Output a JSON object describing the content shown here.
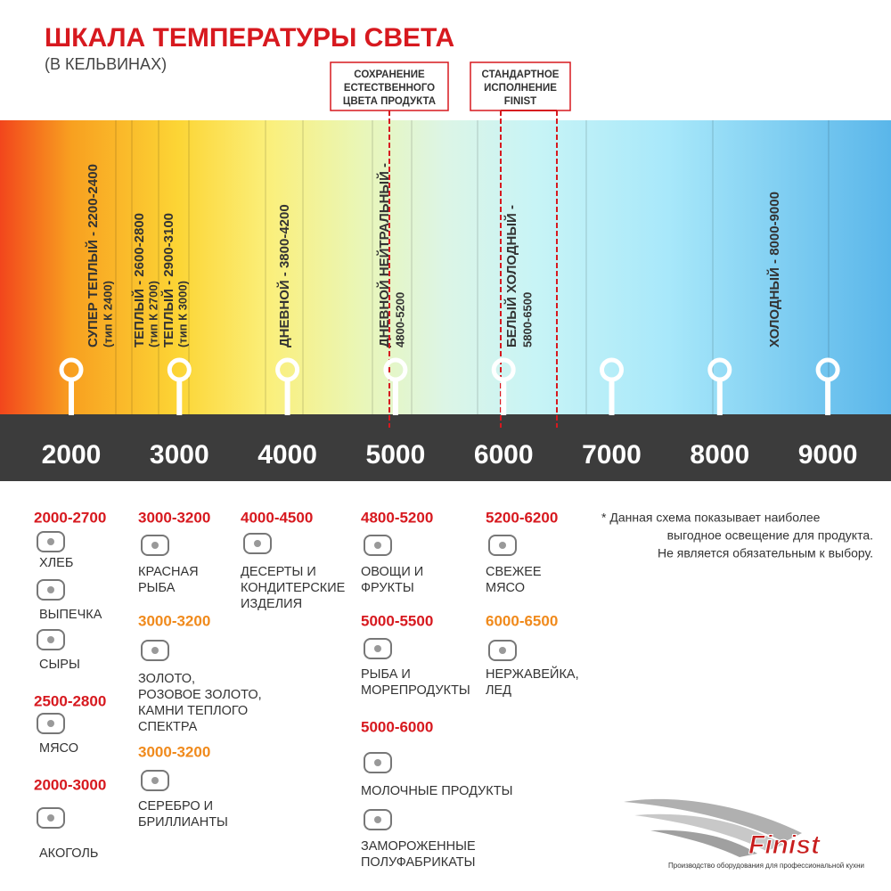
{
  "header": {
    "title": "ШКАЛА ТЕМПЕРАТУРЫ СВЕТА",
    "subtitle": "(В КЕЛЬВИНАХ)"
  },
  "callouts": [
    {
      "lines": [
        "СОХРАНЕНИЕ",
        "ЕСТЕСТВЕННОГО",
        "ЦВЕТА ПРОДУКТА"
      ]
    },
    {
      "lines": [
        "СТАНДАРТНОЕ",
        "ИСПОЛНЕНИЕ",
        "FINIST"
      ]
    }
  ],
  "bands": [
    {
      "lines": [
        "СУПЕР ТЕПЛЫЙ - 2200-2400",
        "(тип К 2400)"
      ]
    },
    {
      "lines": [
        "ТЕПЛЫЙ - 2600-2800",
        "(тип К 2700)"
      ]
    },
    {
      "lines": [
        "ТЕПЛЫЙ - 2900-3100",
        "(тип К 3000)"
      ]
    },
    {
      "lines": [
        "ДНЕВНОЙ - 3800-4200"
      ]
    },
    {
      "lines": [
        "ДНЕВНОЙ НЕЙТРАЛЬНЫЙ -",
        "4800-5200"
      ]
    },
    {
      "lines": [
        "БЕЛЫЙ ХОЛОДНЫЙ -",
        "5800-6500"
      ]
    },
    {
      "lines": [
        "ХОЛОДНЫЙ - 8000-9000"
      ]
    }
  ],
  "scale": [
    "2000",
    "3000",
    "4000",
    "5000",
    "6000",
    "7000",
    "8000",
    "9000"
  ],
  "columns": [
    {
      "groups": [
        {
          "range": "2000-2700",
          "accent": "#d7191f",
          "items": [
            [
              "ХЛЕБ"
            ],
            [
              "ВЫПЕЧКА"
            ],
            [
              "СЫРЫ"
            ]
          ]
        },
        {
          "range": "2500-2800",
          "accent": "#d7191f",
          "items": [
            [
              "МЯСО"
            ]
          ]
        },
        {
          "range": "2000-3000",
          "accent": "#d7191f",
          "items": [
            [
              "АКОГОЛЬ"
            ]
          ]
        }
      ]
    },
    {
      "groups": [
        {
          "range": "3000-3200",
          "accent": "#d7191f",
          "items": [
            [
              "КРАСНАЯ",
              "РЫБА"
            ]
          ]
        },
        {
          "range": "3000-3200",
          "accent": "#f08a1c",
          "items": [
            [
              "ЗОЛОТО,",
              "РОЗОВОЕ ЗОЛОТО,",
              "КАМНИ ТЕПЛОГО",
              "СПЕКТРА"
            ]
          ]
        },
        {
          "range": "3000-3200",
          "accent": "#f08a1c",
          "items": [
            [
              "СЕРЕБРО И",
              "БРИЛЛИАНТЫ"
            ]
          ]
        }
      ]
    },
    {
      "groups": [
        {
          "range": "4000-4500",
          "accent": "#d7191f",
          "items": [
            [
              "ДЕСЕРТЫ И",
              "КОНДИТЕРСКИЕ",
              "ИЗДЕЛИЯ"
            ]
          ]
        }
      ]
    },
    {
      "groups": [
        {
          "range": "4800-5200",
          "accent": "#d7191f",
          "items": [
            [
              "ОВОЩИ И",
              "ФРУКТЫ"
            ]
          ]
        },
        {
          "range": "5000-5500",
          "accent": "#d7191f",
          "items": [
            [
              "РЫБА И",
              "МОРЕПРОДУКТЫ"
            ]
          ]
        },
        {
          "range": "5000-6000",
          "accent": "#d7191f",
          "items": [
            [
              "МОЛОЧНЫЕ ПРОДУКТЫ"
            ],
            [
              "ЗАМОРОЖЕННЫЕ",
              "ПОЛУФАБРИКАТЫ"
            ]
          ]
        }
      ]
    },
    {
      "groups": [
        {
          "range": "5200-6200",
          "accent": "#d7191f",
          "items": [
            [
              "СВЕЖЕЕ",
              "МЯСО"
            ]
          ]
        },
        {
          "range": "6000-6500",
          "accent": "#f08a1c",
          "items": [
            [
              "НЕРЖАВЕЙКА,",
              "ЛЕД"
            ]
          ]
        }
      ]
    }
  ],
  "note": [
    "* Данная схема показывает наиболее",
    "выгодное освещение для продукта.",
    "Не является обязательным к выбору."
  ],
  "logo": {
    "name": "Finist",
    "tagline": "Производство оборудования для профессиональной кухни"
  }
}
